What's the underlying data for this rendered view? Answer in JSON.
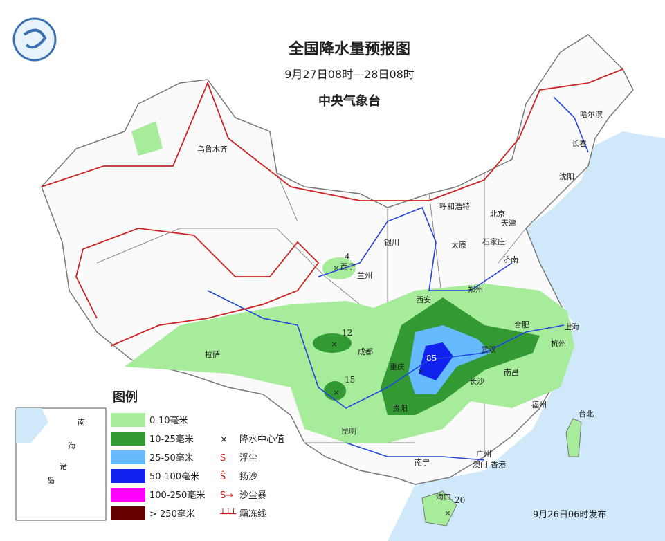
{
  "header": {
    "title": "全国降水量预报图",
    "period": "9月27日08时—28日08时",
    "issuer": "中央气象台"
  },
  "cities": [
    "乌鲁木齐",
    "哈尔滨",
    "长春",
    "沈阳",
    "呼和浩特",
    "北京",
    "天津",
    "石家庄",
    "太原",
    "银川",
    "西宁",
    "兰州",
    "济南",
    "郑州",
    "西安",
    "合肥",
    "上海",
    "武汉",
    "杭州",
    "成都",
    "拉萨",
    "重庆",
    "长沙",
    "南昌",
    "贵阳",
    "昆明",
    "福州",
    "台北",
    "南宁",
    "广州",
    "香港",
    "澳门",
    "海口"
  ],
  "precipitation_centers": [
    4,
    12,
    15,
    85,
    20
  ],
  "legend": {
    "title": "图例",
    "precipitation": [
      {
        "label": "0-10毫米",
        "color": "#a6ec9a"
      },
      {
        "label": "10-25毫米",
        "color": "#339933"
      },
      {
        "label": "25-50毫米",
        "color": "#66bbff"
      },
      {
        "label": "50-100毫米",
        "color": "#1122ee"
      },
      {
        "label": "100-250毫米",
        "color": "#ff00ff"
      },
      {
        "label": "> 250毫米",
        "color": "#660000"
      }
    ],
    "symbols": [
      "降水中心值",
      "浮尘",
      "扬沙",
      "沙尘暴",
      "霜冻线"
    ]
  },
  "inset_labels": [
    "南",
    "海",
    "诸",
    "岛"
  ],
  "footer": "9月26日06时发布"
}
